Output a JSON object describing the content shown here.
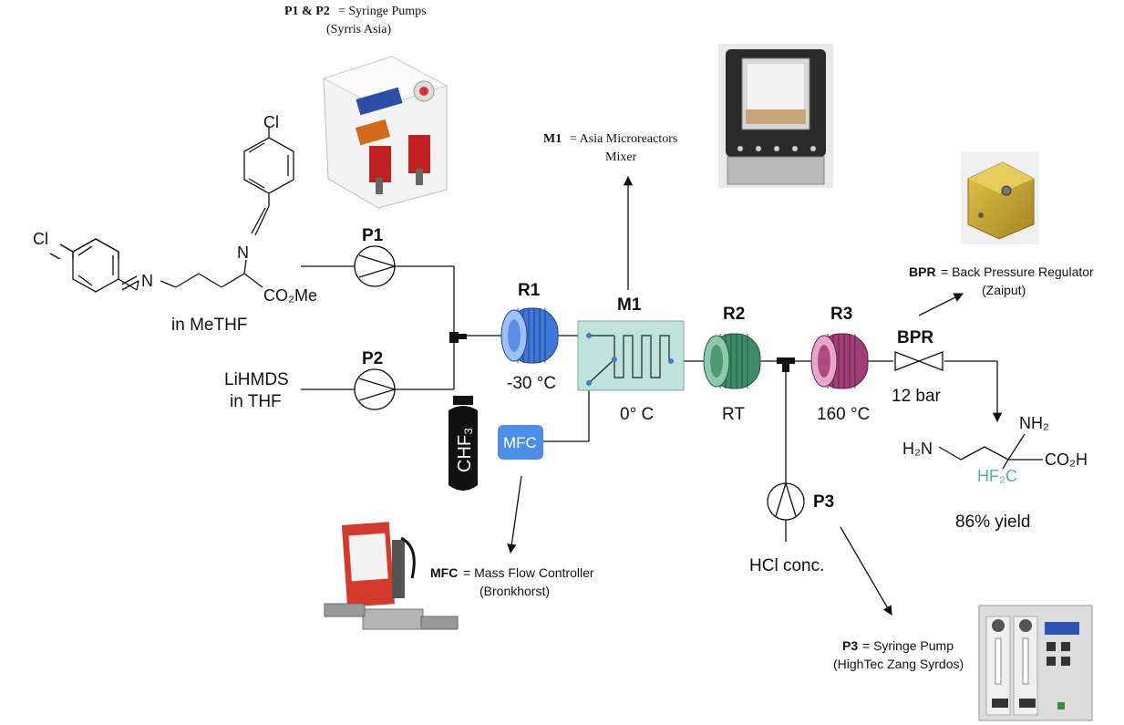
{
  "header": {
    "pumps_key": "P1 & P2",
    "pumps_desc": "= Syringe Pumps",
    "pumps_vendor": "(Syrris Asia)"
  },
  "mixer_caption": {
    "key": "M1",
    "desc": "= Asia Microreactors",
    "desc2": "Mixer"
  },
  "bpr_caption": {
    "key": "BPR",
    "desc": "= Back Pressure Regulator",
    "vendor": "(Zaiput)"
  },
  "mfc_caption": {
    "key": "MFC",
    "desc": "= Mass Flow Controller",
    "vendor": "(Bronkhorst)"
  },
  "p3_caption": {
    "key": "P3",
    "desc": "= Syringe Pump",
    "vendor": "(HighTec Zang Syrdos)"
  },
  "starting_material": {
    "cl_top": "Cl",
    "cl_left": "Cl",
    "n1": "N",
    "n2": "N",
    "ester": "CO₂Me",
    "solvent": "in MeTHF"
  },
  "reagent": {
    "line1": "LiHMDS",
    "line2": "in THF"
  },
  "gas": {
    "cylinder": "CHF₃",
    "mfc": "MFC"
  },
  "nodes": {
    "p1": "P1",
    "p2": "P2",
    "p3": "P3",
    "r1": "R1",
    "r2": "R2",
    "r3": "R3",
    "m1": "M1",
    "bpr": "BPR"
  },
  "conditions": {
    "r1": "-30 °C",
    "m1": "0° C",
    "r2": "RT",
    "r3": "160 °C",
    "bpr": "12 bar",
    "quench": "HCl conc."
  },
  "product": {
    "amine_left": "H₂N",
    "amine_top": "NH₂",
    "acid": "CO₂H",
    "difluoromethyl": "HF₂C",
    "yield": "86% yield"
  },
  "colors": {
    "r1": "#5b8fe6",
    "r2": "#4e9a77",
    "r3": "#b04a82",
    "mixer": "#bfe3da",
    "mfc": "#4d8fe8",
    "cf2h": "#4fb3a3"
  },
  "icons": [
    "syringe-pump-photo",
    "microreactor-mixer-photo",
    "back-pressure-regulator-photo",
    "mass-flow-controller-photo",
    "syringe-pump-p3-photo",
    "gas-cylinder-icon",
    "coil-reactor-icon",
    "check-valve-icon",
    "t-mixer-icon"
  ]
}
